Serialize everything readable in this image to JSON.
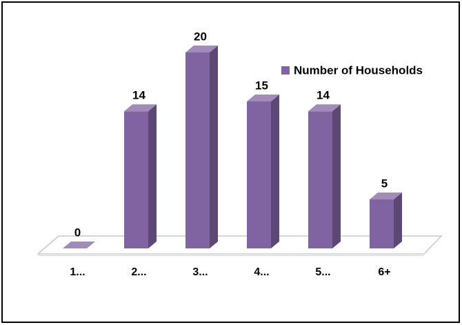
{
  "chart_data": {
    "type": "bar3d",
    "categories": [
      "1...",
      "2...",
      "3...",
      "4...",
      "5...",
      "6+"
    ],
    "series": [
      {
        "name": "Number of Households",
        "color": "#8064a2",
        "values": [
          0,
          14,
          20,
          15,
          14,
          5
        ]
      }
    ]
  }
}
